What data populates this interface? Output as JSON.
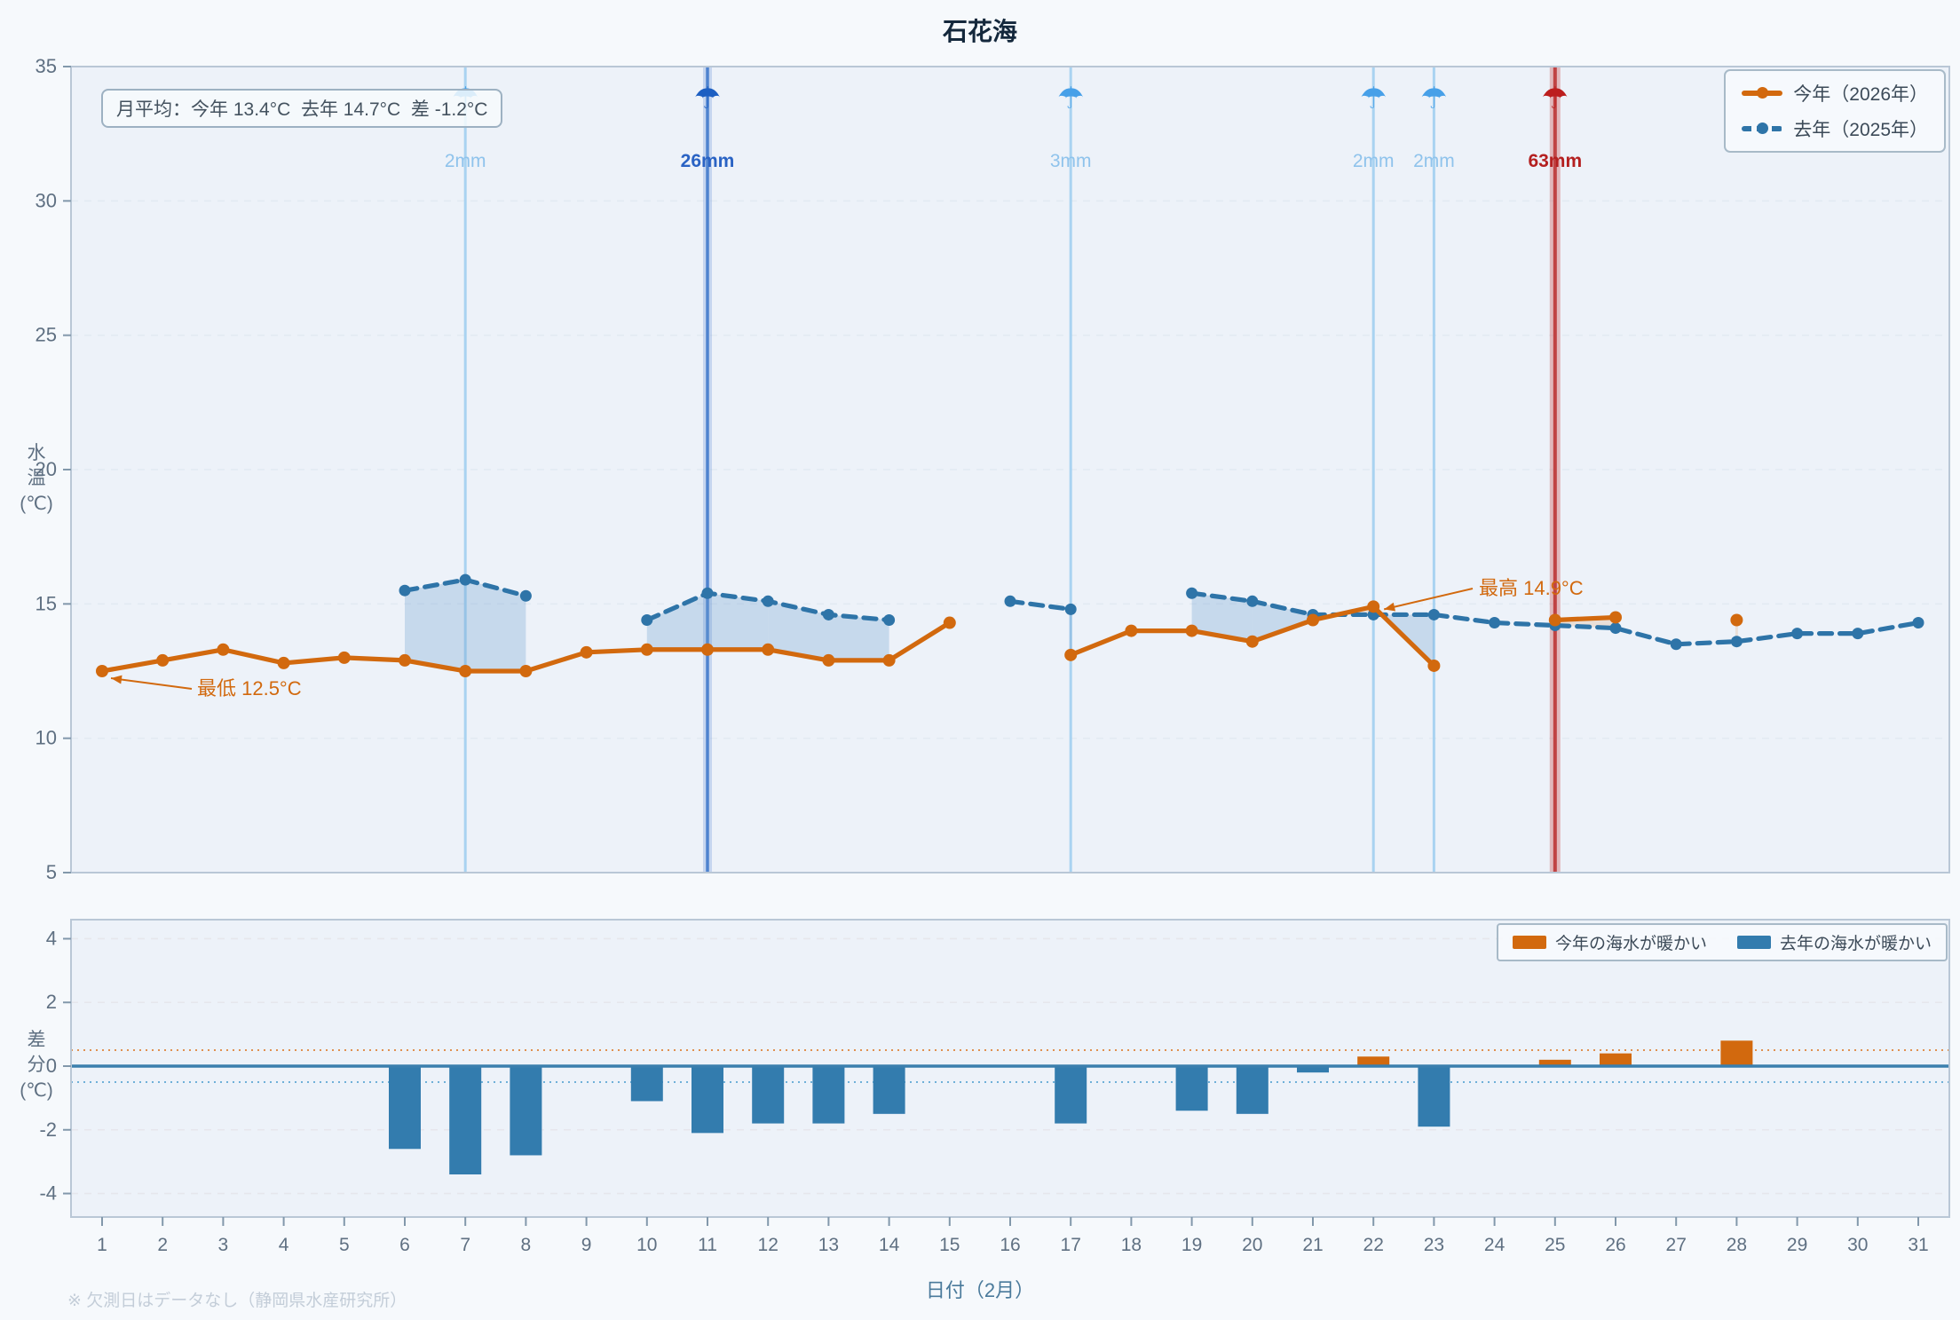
{
  "title": "石花海",
  "footnote": "※ 欠測日はデータなし（静岡県水産研究所）",
  "x_axis": {
    "title": "日付（2月）",
    "days": [
      1,
      2,
      3,
      4,
      5,
      6,
      7,
      8,
      9,
      10,
      11,
      12,
      13,
      14,
      15,
      16,
      17,
      18,
      19,
      20,
      21,
      22,
      23,
      24,
      25,
      26,
      27,
      28,
      29,
      30,
      31
    ]
  },
  "top_chart": {
    "mean_note": "月平均：今年 13.4°C  去年 14.7°C  差 -1.2°C",
    "y_label_lines": [
      "水",
      "温",
      "(℃)"
    ],
    "yticks": [
      35,
      30,
      25,
      20,
      15,
      10,
      5
    ],
    "legend": [
      {
        "label": "今年（2026年）",
        "color": "#d2690e",
        "style": "solid"
      },
      {
        "label": "去年（2025年）",
        "color": "#2e74a8",
        "style": "dashed"
      }
    ],
    "annotations": {
      "min": {
        "text": "最低 12.5°C",
        "day": 1,
        "value": 12.5
      },
      "max": {
        "text": "最高 14.9°C",
        "day": 22,
        "value": 14.9
      }
    },
    "rain": [
      {
        "day": 7,
        "label": "2mm",
        "level": "light"
      },
      {
        "day": 11,
        "label": "26mm",
        "level": "medium"
      },
      {
        "day": 17,
        "label": "3mm",
        "level": "light"
      },
      {
        "day": 22,
        "label": "2mm",
        "level": "light"
      },
      {
        "day": 23,
        "label": "2mm",
        "level": "light"
      },
      {
        "day": 25,
        "label": "63mm",
        "level": "heavy"
      }
    ]
  },
  "bottom_chart": {
    "y_label_lines": [
      "差",
      "分",
      "(℃)"
    ],
    "yticks": [
      4,
      2,
      0,
      -2,
      -4
    ],
    "thresholds": {
      "warm_this_year": 0.5,
      "warm_last_year": -0.5
    },
    "legend": [
      {
        "label": "今年の海水が暖かい",
        "color": "#d2690e"
      },
      {
        "label": "去年の海水が暖かい",
        "color": "#337cae"
      }
    ]
  },
  "colors": {
    "today_line": "#d2690e",
    "lastyear_line": "#2e74a8",
    "bar_positive": "#d2690e",
    "bar_negative": "#337cae",
    "fill_lastyear_warmer": "rgba(110,160,205,0.30)",
    "fill_today_warmer": "rgba(214,126,44,0.16)",
    "rain_light": "#a9d3f1",
    "rain_light_label": "#8fc3ec",
    "rain_medium": "#4e83cf",
    "rain_medium_label": "#2a63c4",
    "rain_heavy": "#c04343",
    "rain_heavy_label": "#b42020",
    "plot_bg": "#edf2f9",
    "page_bg": "#f6f9fc",
    "border": "#b9c7d6",
    "grid": "#e2eaf2",
    "tick_text": "#5f7082",
    "zero_line": "#3b7fae",
    "dotted_pos": "#e09050",
    "dotted_neg": "#6fb0d8"
  },
  "chart_data": [
    {
      "type": "line",
      "title": "石花海",
      "x": [
        1,
        2,
        3,
        4,
        5,
        6,
        7,
        8,
        9,
        10,
        11,
        12,
        13,
        14,
        15,
        16,
        17,
        18,
        19,
        20,
        21,
        22,
        23,
        24,
        25,
        26,
        27,
        28,
        29,
        30,
        31
      ],
      "xlabel": "日付（2月）",
      "ylabel": "水温(℃)",
      "ylim": [
        5,
        35
      ],
      "yticks": [
        5,
        10,
        15,
        20,
        25,
        30,
        35
      ],
      "legend_position": "top-right",
      "series": [
        {
          "name": "今年（2026年）",
          "color": "#d2690e",
          "style": "solid",
          "values": [
            12.5,
            12.9,
            13.3,
            12.8,
            13.0,
            12.9,
            12.5,
            12.5,
            13.2,
            13.3,
            13.3,
            13.3,
            12.9,
            12.9,
            14.3,
            null,
            13.1,
            14.0,
            14.0,
            13.6,
            14.4,
            14.9,
            12.7,
            null,
            14.4,
            14.5,
            null,
            14.4,
            null,
            null,
            null
          ]
        },
        {
          "name": "去年（2025年）",
          "color": "#2e74a8",
          "style": "dashed",
          "values": [
            null,
            null,
            null,
            null,
            null,
            15.5,
            15.9,
            15.3,
            null,
            14.4,
            15.4,
            15.1,
            14.6,
            14.4,
            null,
            15.1,
            14.8,
            null,
            15.4,
            15.1,
            14.6,
            14.6,
            14.6,
            14.3,
            14.2,
            14.1,
            13.5,
            13.6,
            13.9,
            13.9,
            14.3
          ]
        }
      ],
      "rain_mm": [
        {
          "day": 7,
          "mm": 2
        },
        {
          "day": 11,
          "mm": 26
        },
        {
          "day": 17,
          "mm": 3
        },
        {
          "day": 22,
          "mm": 2
        },
        {
          "day": 23,
          "mm": 2
        },
        {
          "day": 25,
          "mm": 63
        }
      ],
      "annotations": [
        {
          "text": "最低 12.5°C",
          "day": 1,
          "value": 12.5
        },
        {
          "text": "最高 14.9°C",
          "day": 22,
          "value": 14.9
        }
      ],
      "monthly_mean": {
        "this_year": 13.4,
        "last_year": 14.7,
        "diff": -1.2
      }
    },
    {
      "type": "bar",
      "x": [
        1,
        2,
        3,
        4,
        5,
        6,
        7,
        8,
        9,
        10,
        11,
        12,
        13,
        14,
        15,
        16,
        17,
        18,
        19,
        20,
        21,
        22,
        23,
        24,
        25,
        26,
        27,
        28,
        29,
        30,
        31
      ],
      "ylabel": "差分(℃)",
      "ylim": [
        -4.7,
        4.6
      ],
      "yticks": [
        -4,
        -2,
        0,
        2,
        4
      ],
      "dotted_guides": [
        0.5,
        -0.5
      ],
      "values": [
        null,
        null,
        null,
        null,
        null,
        -2.6,
        -3.4,
        -2.8,
        null,
        -1.1,
        -2.1,
        -1.8,
        -1.8,
        -1.5,
        null,
        null,
        -1.8,
        null,
        -1.4,
        -1.5,
        -0.2,
        0.3,
        -1.9,
        null,
        0.2,
        0.4,
        null,
        0.8,
        null,
        null,
        null
      ]
    }
  ]
}
